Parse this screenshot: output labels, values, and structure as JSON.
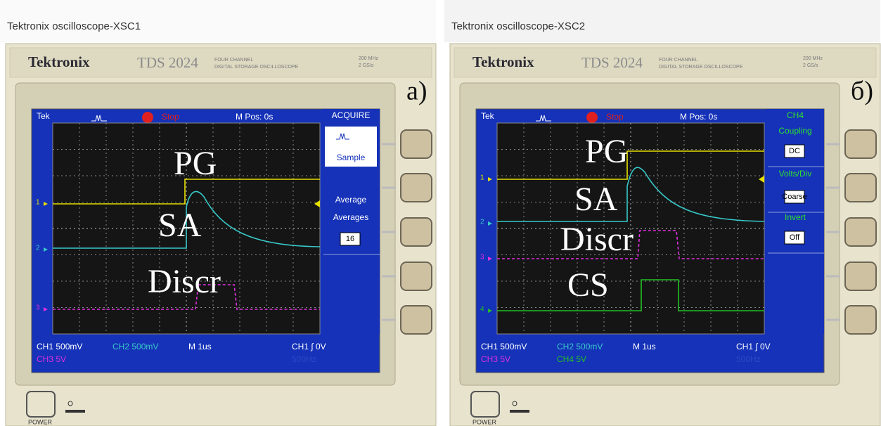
{
  "windows": [
    {
      "title": "Tektronix oscilloscope-XSC1",
      "brand": "Tektronix",
      "model": "TDS 2024",
      "desc_1": "FOUR CHANNEL",
      "desc_2": "DIGITAL STORAGE OSCILLOSCOPE",
      "spec_1": "200 MHz",
      "spec_2": "2 GS/s",
      "panel_label": "а)",
      "screen": {
        "tek": "Tek",
        "status": "Stop",
        "mpos": "M Pos: 0s",
        "menu": [
          "ACQUIRE",
          "Sample",
          "Average",
          "Averages",
          "16"
        ],
        "trace_labels": [
          "PG",
          "SA",
          "Discr"
        ],
        "channel_markers": [
          "1",
          "2",
          "3"
        ],
        "readout_1": [
          "CH1 500mV",
          "CH2 500mV",
          "M 1us",
          "CH1 ∫ 0V"
        ],
        "readout_2": [
          "CH3 5V",
          "500Hz"
        ]
      },
      "power": "POWER"
    },
    {
      "title": "Tektronix oscilloscope-XSC2",
      "brand": "Tektronix",
      "model": "TDS 2024",
      "desc_1": "FOUR CHANNEL",
      "desc_2": "DIGITAL STORAGE OSCILLOSCOPE",
      "spec_1": "200 MHz",
      "spec_2": "2 GS/s",
      "panel_label": "б)",
      "screen": {
        "tek": "Tek",
        "status": "Stop",
        "mpos": "M Pos: 0s",
        "menu": [
          "CH4",
          "Coupling",
          "DC",
          "Volts/Div",
          "Coarse",
          "Invert",
          "Off"
        ],
        "trace_labels": [
          "PG",
          "SA",
          "Discr",
          "CS"
        ],
        "channel_markers": [
          "1",
          "2",
          "3",
          "4"
        ],
        "readout_1": [
          "CH1 500mV",
          "CH2 500mV",
          "M 1us",
          "CH1 ∫ 0V"
        ],
        "readout_2": [
          "CH3 5V",
          "CH4 5V",
          "500Hz"
        ]
      },
      "power": "POWER"
    }
  ]
}
